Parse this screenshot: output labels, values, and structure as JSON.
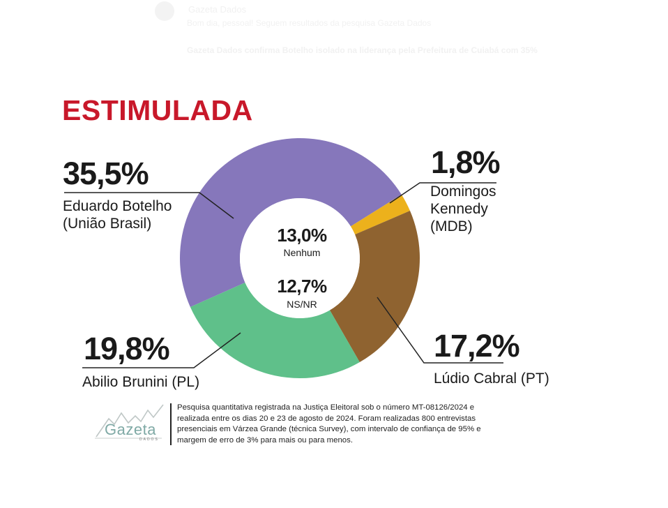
{
  "background_post": {
    "author": "Gazeta Dados",
    "subtitle": "Bom dia, pessoal! Seguem resultados da pesquisa Gazeta Dados",
    "headline": "Gazeta Dados confirma Botelho isolado na liderança pela Prefeitura de Cuiabá com 35%"
  },
  "title": "ESTIMULADA",
  "colors": {
    "title_red": "#c8182a",
    "botelho": "#8677bb",
    "kennedy": "#ecb11c",
    "cabral": "#8f6330",
    "brunini": "#5fc08a"
  },
  "candidates": [
    {
      "pct": "35,5%",
      "name_line1": "Eduardo Botelho",
      "name_line2": "(União Brasil)"
    },
    {
      "pct": "1,8%",
      "name_line1": "Domingos",
      "name_line2": "Kennedy",
      "name_line3": "(MDB)"
    },
    {
      "pct": "17,2%",
      "name_line1": "Lúdio Cabral (PT)"
    },
    {
      "pct": "19,8%",
      "name_line1": "Abilio Brunini (PL)"
    }
  ],
  "center": {
    "none_pct": "13,0%",
    "none_label": "Nenhum",
    "dk_pct": "12,7%",
    "dk_label": "NS/NR"
  },
  "footer": {
    "logo_text": "Gazeta",
    "logo_sub": "DADOS",
    "note": "Pesquisa quantitativa registrada na Justiça Eleitoral sob o número MT-08126/2024 e realizada entre os dias 20 e 23 de agosto de 2024. Foram realizadas 800 entrevistas presenciais em Várzea Grande (técnica Survey), com intervalo de confiança de 95% e margem de erro de 3% para mais ou para menos."
  },
  "chart_data": {
    "type": "pie",
    "title": "ESTIMULADA",
    "categories": [
      "Eduardo Botelho (União Brasil)",
      "Domingos Kennedy (MDB)",
      "Lúdio Cabral (PT)",
      "Abilio Brunini (PL)",
      "Nenhum",
      "NS/NR"
    ],
    "values": [
      35.5,
      1.8,
      17.2,
      19.8,
      13.0,
      12.7
    ],
    "colors": [
      "#8677bb",
      "#ecb11c",
      "#8f6330",
      "#5fc08a",
      null,
      null
    ],
    "donut": true,
    "notes": "Nenhum (13,0%) and NS/NR (12,7%) shown as text in donut center, not as segments"
  }
}
